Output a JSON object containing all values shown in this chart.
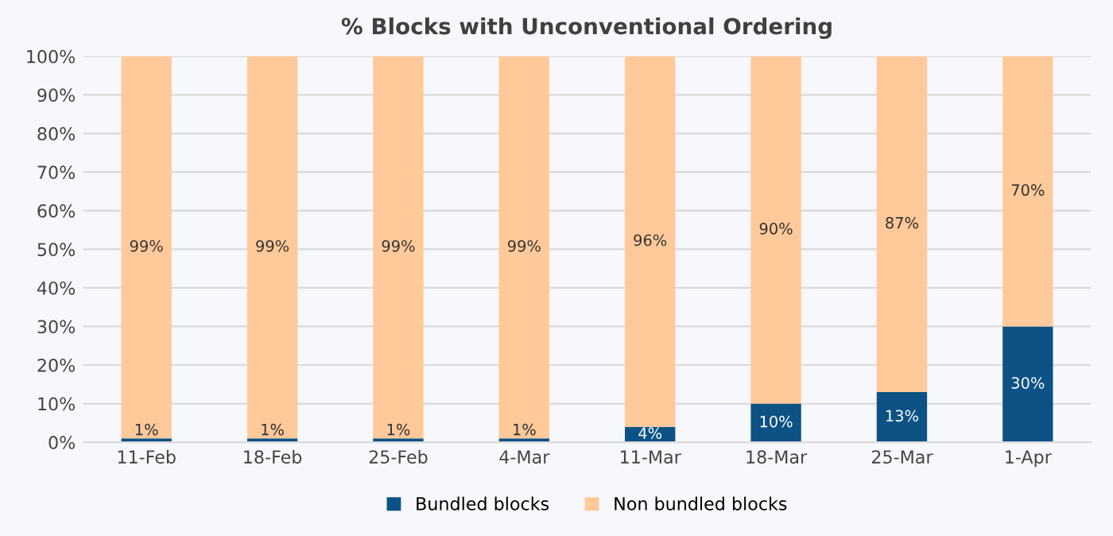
{
  "chart_data": {
    "type": "bar",
    "title": "% Blocks with Unconventional Ordering",
    "stacked": true,
    "categories": [
      "11-Feb",
      "18-Feb",
      "25-Feb",
      "4-Mar",
      "11-Mar",
      "18-Mar",
      "25-Mar",
      "1-Apr"
    ],
    "series": [
      {
        "name": "Bundled blocks",
        "color": "#0c5285",
        "values": [
          1,
          1,
          1,
          1,
          4,
          10,
          13,
          30
        ],
        "value_labels": [
          "1%",
          "1%",
          "1%",
          "1%",
          "4%",
          "10%",
          "13%",
          "30%"
        ]
      },
      {
        "name": "Non bundled blocks",
        "color": "#ffc999",
        "values": [
          99,
          99,
          99,
          99,
          96,
          90,
          87,
          70
        ],
        "value_labels": [
          "99%",
          "99%",
          "99%",
          "99%",
          "96%",
          "90%",
          "87%",
          "70%"
        ]
      }
    ],
    "ylim": [
      0,
      100
    ],
    "yticks": [
      {
        "value": 0,
        "label": "0%"
      },
      {
        "value": 10,
        "label": "10%"
      },
      {
        "value": 20,
        "label": "20%"
      },
      {
        "value": 30,
        "label": "30%"
      },
      {
        "value": 40,
        "label": "40%"
      },
      {
        "value": 50,
        "label": "50%"
      },
      {
        "value": 60,
        "label": "60%"
      },
      {
        "value": 70,
        "label": "70%"
      },
      {
        "value": 80,
        "label": "80%"
      },
      {
        "value": 90,
        "label": "90%"
      },
      {
        "value": 100,
        "label": "100%"
      }
    ],
    "grid": "y",
    "legend": "bottom"
  }
}
